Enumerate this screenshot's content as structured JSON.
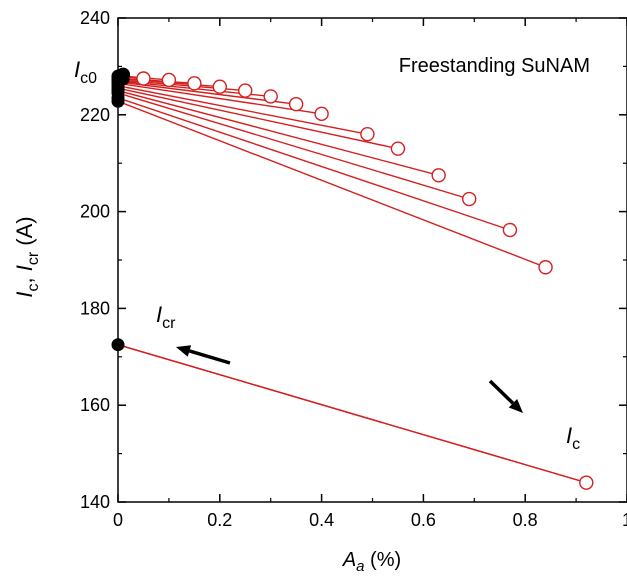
{
  "chart_data": {
    "type": "scatter",
    "title": "",
    "annotation_title": "Freestanding SuNAM",
    "xlabel": {
      "main": "A",
      "sub": "a",
      "unit": " (%)"
    },
    "ylabel": {
      "p1": "I",
      "s1": "c",
      "sep": ", ",
      "p2": "I",
      "s2": "cr",
      "unit": " (A)"
    },
    "xlim": [
      0,
      1.0
    ],
    "ylim": [
      140,
      240
    ],
    "x_ticks": [
      0,
      0.2,
      0.4,
      0.6,
      0.8,
      1.0
    ],
    "x_tick_labels": [
      "0",
      "0.2",
      "0.4",
      "0.6",
      "0.8",
      "1"
    ],
    "y_ticks": [
      140,
      160,
      180,
      200,
      220,
      240
    ],
    "y_tick_labels": [
      "140",
      "160",
      "180",
      "200",
      "220",
      "240"
    ],
    "x_minor_step": 0.1,
    "y_minor_step": 10,
    "grid": false,
    "legend": "none",
    "line_color": "#d42020",
    "filled_color": "#000000",
    "labels": {
      "ic0": {
        "main": "I",
        "sub": "c0"
      },
      "icr": {
        "main": "I",
        "sub": "cr"
      },
      "ic": {
        "main": "I",
        "sub": "c"
      }
    },
    "ic_points": [
      {
        "x": 0.05,
        "y": 227.5
      },
      {
        "x": 0.1,
        "y": 227.2
      },
      {
        "x": 0.15,
        "y": 226.5
      },
      {
        "x": 0.2,
        "y": 225.8
      },
      {
        "x": 0.25,
        "y": 225.0
      },
      {
        "x": 0.3,
        "y": 223.8
      },
      {
        "x": 0.35,
        "y": 222.2
      },
      {
        "x": 0.4,
        "y": 220.2
      },
      {
        "x": 0.49,
        "y": 216.0
      },
      {
        "x": 0.55,
        "y": 213.0
      },
      {
        "x": 0.63,
        "y": 207.5
      },
      {
        "x": 0.69,
        "y": 202.6
      },
      {
        "x": 0.77,
        "y": 196.2
      },
      {
        "x": 0.84,
        "y": 188.5
      },
      {
        "x": 0.92,
        "y": 144.0
      }
    ],
    "icr_points": [
      {
        "x": 0.0,
        "y": 228.0
      },
      {
        "x": 0.01,
        "y": 228.0
      },
      {
        "x": 0.0,
        "y": 227.6
      },
      {
        "x": 0.01,
        "y": 227.4
      },
      {
        "x": 0.0,
        "y": 227.2
      },
      {
        "x": 0.0,
        "y": 227.0
      },
      {
        "x": 0.0,
        "y": 226.8
      },
      {
        "x": 0.0,
        "y": 226.5
      },
      {
        "x": 0.0,
        "y": 226.0
      },
      {
        "x": 0.0,
        "y": 225.5
      },
      {
        "x": 0.0,
        "y": 225.0
      },
      {
        "x": 0.0,
        "y": 224.5
      },
      {
        "x": 0.0,
        "y": 223.5
      },
      {
        "x": 0.0,
        "y": 222.8
      },
      {
        "x": 0.0,
        "y": 172.5
      }
    ],
    "ic0_point": {
      "x": 0.01,
      "y": 228.3
    }
  }
}
